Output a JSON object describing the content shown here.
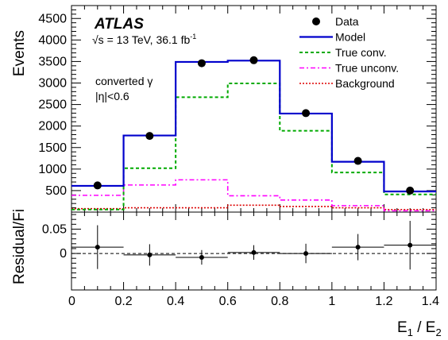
{
  "chart_data": [
    {
      "type": "histogram",
      "panel": "main",
      "ylabel": "Events",
      "ylim": [
        0,
        4800
      ],
      "yticks": [
        500,
        1000,
        1500,
        2000,
        2500,
        3000,
        3500,
        4000,
        4500
      ],
      "ytick_labels": [
        "500",
        "1000",
        "1500",
        "2000",
        "2500",
        "3000",
        "3500",
        "4000",
        "4500"
      ],
      "xlim": [
        0,
        1.4
      ],
      "bin_edges": [
        0,
        0.2,
        0.4,
        0.6,
        0.8,
        1.0,
        1.2,
        1.4
      ],
      "experiment": "ATLAS",
      "energy_label": "√s = 13 TeV, 36.1 fb",
      "energy_label_sup": "-1",
      "selection_label_1": "converted γ",
      "selection_label_2": "|η|<0.6",
      "legend_position": "top-right",
      "series": [
        {
          "name": "Data",
          "style": "points",
          "color": "#000000",
          "x": [
            0.1,
            0.3,
            0.5,
            0.7,
            0.9,
            1.1,
            1.3
          ],
          "values": [
            620,
            1770,
            3460,
            3530,
            2300,
            1190,
            500
          ]
        },
        {
          "name": "Model",
          "style": "step-solid",
          "color": "#0000cc",
          "values": [
            610,
            1780,
            3490,
            3520,
            2290,
            1170,
            480
          ]
        },
        {
          "name": "True conv.",
          "style": "step-dashed",
          "color": "#00aa00",
          "values": [
            60,
            1020,
            2670,
            2990,
            1890,
            920,
            410
          ]
        },
        {
          "name": "True unconv.",
          "style": "step-dashdot",
          "color": "#ff00ff",
          "values": [
            390,
            630,
            750,
            380,
            280,
            150,
            30
          ]
        },
        {
          "name": "Background",
          "style": "step-dotted",
          "color": "#dd0000",
          "values": [
            80,
            100,
            100,
            160,
            130,
            100,
            60
          ]
        }
      ]
    },
    {
      "type": "scatter",
      "panel": "ratio",
      "ylabel": "Residual/Fi",
      "xlabel": "E",
      "xlabel_sub1": "1",
      "xlabel_mid": " / E",
      "xlabel_sub2": "2",
      "xlim": [
        0,
        1.4
      ],
      "ylim": [
        -0.075,
        0.085
      ],
      "xticks": [
        0,
        0.2,
        0.4,
        0.6,
        0.8,
        1.0,
        1.2,
        1.4
      ],
      "xtick_labels": [
        "0",
        "0.2",
        "0.4",
        "0.6",
        "0.8",
        "1",
        "1.2",
        "1.4"
      ],
      "yticks": [
        0,
        0.05
      ],
      "ytick_labels": [
        "0",
        "0.05"
      ],
      "reference_line": 0,
      "series": [
        {
          "name": "Residual",
          "color": "#000000",
          "x": [
            0.1,
            0.3,
            0.5,
            0.7,
            0.9,
            1.1,
            1.3
          ],
          "values": [
            0.013,
            -0.003,
            -0.008,
            0.002,
            0.0,
            0.013,
            0.017
          ],
          "errors": [
            0.045,
            0.022,
            0.015,
            0.015,
            0.02,
            0.027,
            0.05
          ]
        }
      ]
    }
  ]
}
